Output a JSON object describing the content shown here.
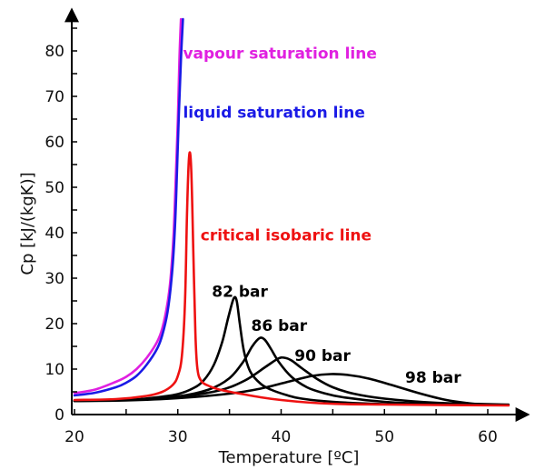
{
  "chart_data": {
    "type": "line",
    "title": "",
    "xlabel": "Temperature [ºC]",
    "ylabel": "Cp [kJ/(kgK)]",
    "xlim": [
      20,
      63
    ],
    "ylim": [
      0,
      88
    ],
    "xticks": [
      20,
      30,
      40,
      50,
      60
    ],
    "yticks": [
      0,
      10,
      20,
      30,
      40,
      50,
      60,
      70,
      80
    ],
    "grid": false,
    "series": [
      {
        "name": "vapour saturation line",
        "color": "#e020e0",
        "x": [
          20,
          22,
          24,
          25,
          26,
          27,
          28,
          28.5,
          29,
          29.3,
          29.6,
          29.8,
          30.0,
          30.15,
          30.3
        ],
        "y": [
          4.7,
          5.5,
          7.2,
          8.3,
          10.0,
          12.5,
          16.0,
          19.0,
          24.5,
          30.0,
          40.0,
          52.0,
          65.0,
          78.0,
          87.0
        ]
      },
      {
        "name": "liquid saturation line",
        "color": "#1a1ae6",
        "x": [
          20,
          22,
          24,
          25,
          26,
          27,
          28,
          28.5,
          29,
          29.4,
          29.7,
          29.9,
          30.1,
          30.3,
          30.5
        ],
        "y": [
          4.2,
          4.8,
          6.0,
          7.0,
          8.5,
          11.0,
          14.5,
          17.5,
          22.5,
          30.0,
          40.0,
          52.0,
          66.0,
          78.0,
          87.0
        ]
      },
      {
        "name": "critical isobaric line",
        "color": "#ee1111",
        "x": [
          20,
          24,
          27,
          28.5,
          29.5,
          30.0,
          30.4,
          30.7,
          30.9,
          31.1,
          31.3,
          31.5,
          31.7,
          31.9,
          32.3,
          33,
          34,
          36,
          38,
          40,
          43,
          46,
          50,
          55,
          62
        ],
        "y": [
          3.2,
          3.4,
          4.1,
          5.0,
          6.5,
          8.5,
          13.0,
          25.0,
          45.0,
          57.0,
          54.0,
          36.0,
          18.0,
          10.0,
          7.3,
          6.3,
          5.5,
          4.6,
          3.8,
          3.2,
          2.6,
          2.3,
          2.2,
          2.1,
          2.0
        ]
      },
      {
        "name": "82 bar",
        "color": "#000000",
        "x": [
          20,
          25,
          28,
          30,
          31.5,
          32.5,
          33.5,
          34.3,
          34.9,
          35.4,
          35.7,
          36.0,
          36.4,
          37.0,
          38.0,
          39.0,
          40.5,
          42,
          45,
          50,
          55,
          62
        ],
        "y": [
          3.0,
          3.2,
          3.8,
          4.5,
          5.8,
          7.5,
          11.0,
          16.0,
          21.5,
          25.5,
          25.0,
          20.0,
          14.0,
          9.5,
          6.8,
          5.5,
          4.3,
          3.5,
          2.8,
          2.3,
          2.2,
          2.1
        ]
      },
      {
        "name": "86 bar",
        "color": "#000000",
        "x": [
          20,
          25,
          30,
          33,
          35,
          36.3,
          37.2,
          37.9,
          38.4,
          39.0,
          39.8,
          41,
          42.5,
          44,
          46,
          50,
          55,
          62
        ],
        "y": [
          3.0,
          3.2,
          4.0,
          5.5,
          8.0,
          11.5,
          15.0,
          16.8,
          16.5,
          14.5,
          11.5,
          8.3,
          6.0,
          4.8,
          3.8,
          2.8,
          2.3,
          2.1
        ]
      },
      {
        "name": "90 bar",
        "color": "#000000",
        "x": [
          20,
          25,
          30,
          34,
          36.5,
          38.5,
          39.7,
          40.3,
          41.0,
          42.0,
          43.5,
          45,
          47,
          50,
          55,
          62
        ],
        "y": [
          3.0,
          3.2,
          3.9,
          5.3,
          7.5,
          10.5,
          12.3,
          12.5,
          11.9,
          10.2,
          7.8,
          6.0,
          4.6,
          3.5,
          2.6,
          2.2
        ]
      },
      {
        "name": "98 bar",
        "color": "#000000",
        "x": [
          20,
          25,
          30,
          35,
          38,
          41,
          43,
          44.8,
          46.5,
          48.5,
          51,
          53.5,
          56,
          58.5,
          60,
          62
        ],
        "y": [
          3.0,
          3.1,
          3.6,
          4.6,
          5.7,
          7.4,
          8.5,
          8.9,
          8.7,
          7.9,
          6.3,
          4.6,
          3.2,
          2.4,
          2.2,
          2.1
        ]
      }
    ],
    "annotations": [
      {
        "text": "vapour saturation line",
        "color": "#e020e0",
        "x": 30.5,
        "y": 78.3
      },
      {
        "text": "liquid saturation line",
        "color": "#1a1ae6",
        "x": 30.5,
        "y": 65.3
      },
      {
        "text": "critical isobaric line",
        "color": "#ee1111",
        "x": 32.2,
        "y": 38.3
      },
      {
        "text": "82 bar",
        "color": "#000000",
        "x": 33.3,
        "y": 25.9
      },
      {
        "text": "86 bar",
        "color": "#000000",
        "x": 37.1,
        "y": 18.4
      },
      {
        "text": "90 bar",
        "color": "#000000",
        "x": 41.3,
        "y": 11.8
      },
      {
        "text": "98 bar",
        "color": "#000000",
        "x": 52.0,
        "y": 7.0
      }
    ]
  }
}
